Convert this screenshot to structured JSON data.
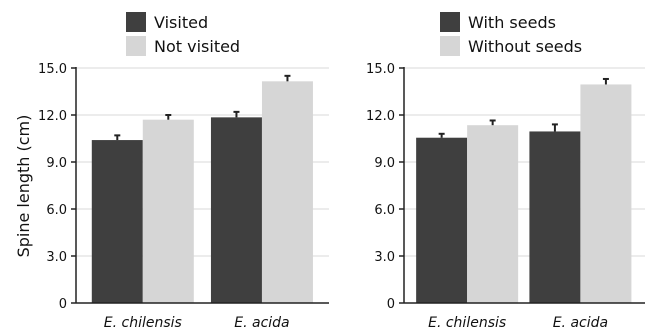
{
  "colors": {
    "dark_bar": "#3f3f3f",
    "light_bar": "#d6d6d6",
    "gridline": "#d9d9d9",
    "axis": "#222222",
    "error_bar": "#222222"
  },
  "ylabel": "Spine length (cm)",
  "chart_data": [
    {
      "type": "bar",
      "categories": [
        "E. chilensis",
        "E. acida"
      ],
      "series": [
        {
          "name": "Visited",
          "values": [
            10.4,
            11.85
          ],
          "errors": [
            0.3,
            0.35
          ]
        },
        {
          "name": "Not visited",
          "values": [
            11.7,
            14.15
          ],
          "errors": [
            0.3,
            0.35
          ]
        }
      ],
      "ylabel": "Spine length (cm)",
      "ylim": [
        0,
        15
      ],
      "yticks": [
        "0",
        "3.0",
        "6.0",
        "9.0",
        "12.0",
        "15.0"
      ],
      "grid": true,
      "legend": "top-left"
    },
    {
      "type": "bar",
      "categories": [
        "E. chilensis",
        "E. acida"
      ],
      "series": [
        {
          "name": "With seeds",
          "values": [
            10.55,
            10.95
          ],
          "errors": [
            0.25,
            0.45
          ]
        },
        {
          "name": "Without seeds",
          "values": [
            11.35,
            13.95
          ],
          "errors": [
            0.3,
            0.35
          ]
        }
      ],
      "ylabel": "",
      "ylim": [
        0,
        15
      ],
      "yticks": [
        "0",
        "3.0",
        "6.0",
        "9.0",
        "12.0",
        "15.0"
      ],
      "grid": true,
      "legend": "top-left"
    }
  ]
}
